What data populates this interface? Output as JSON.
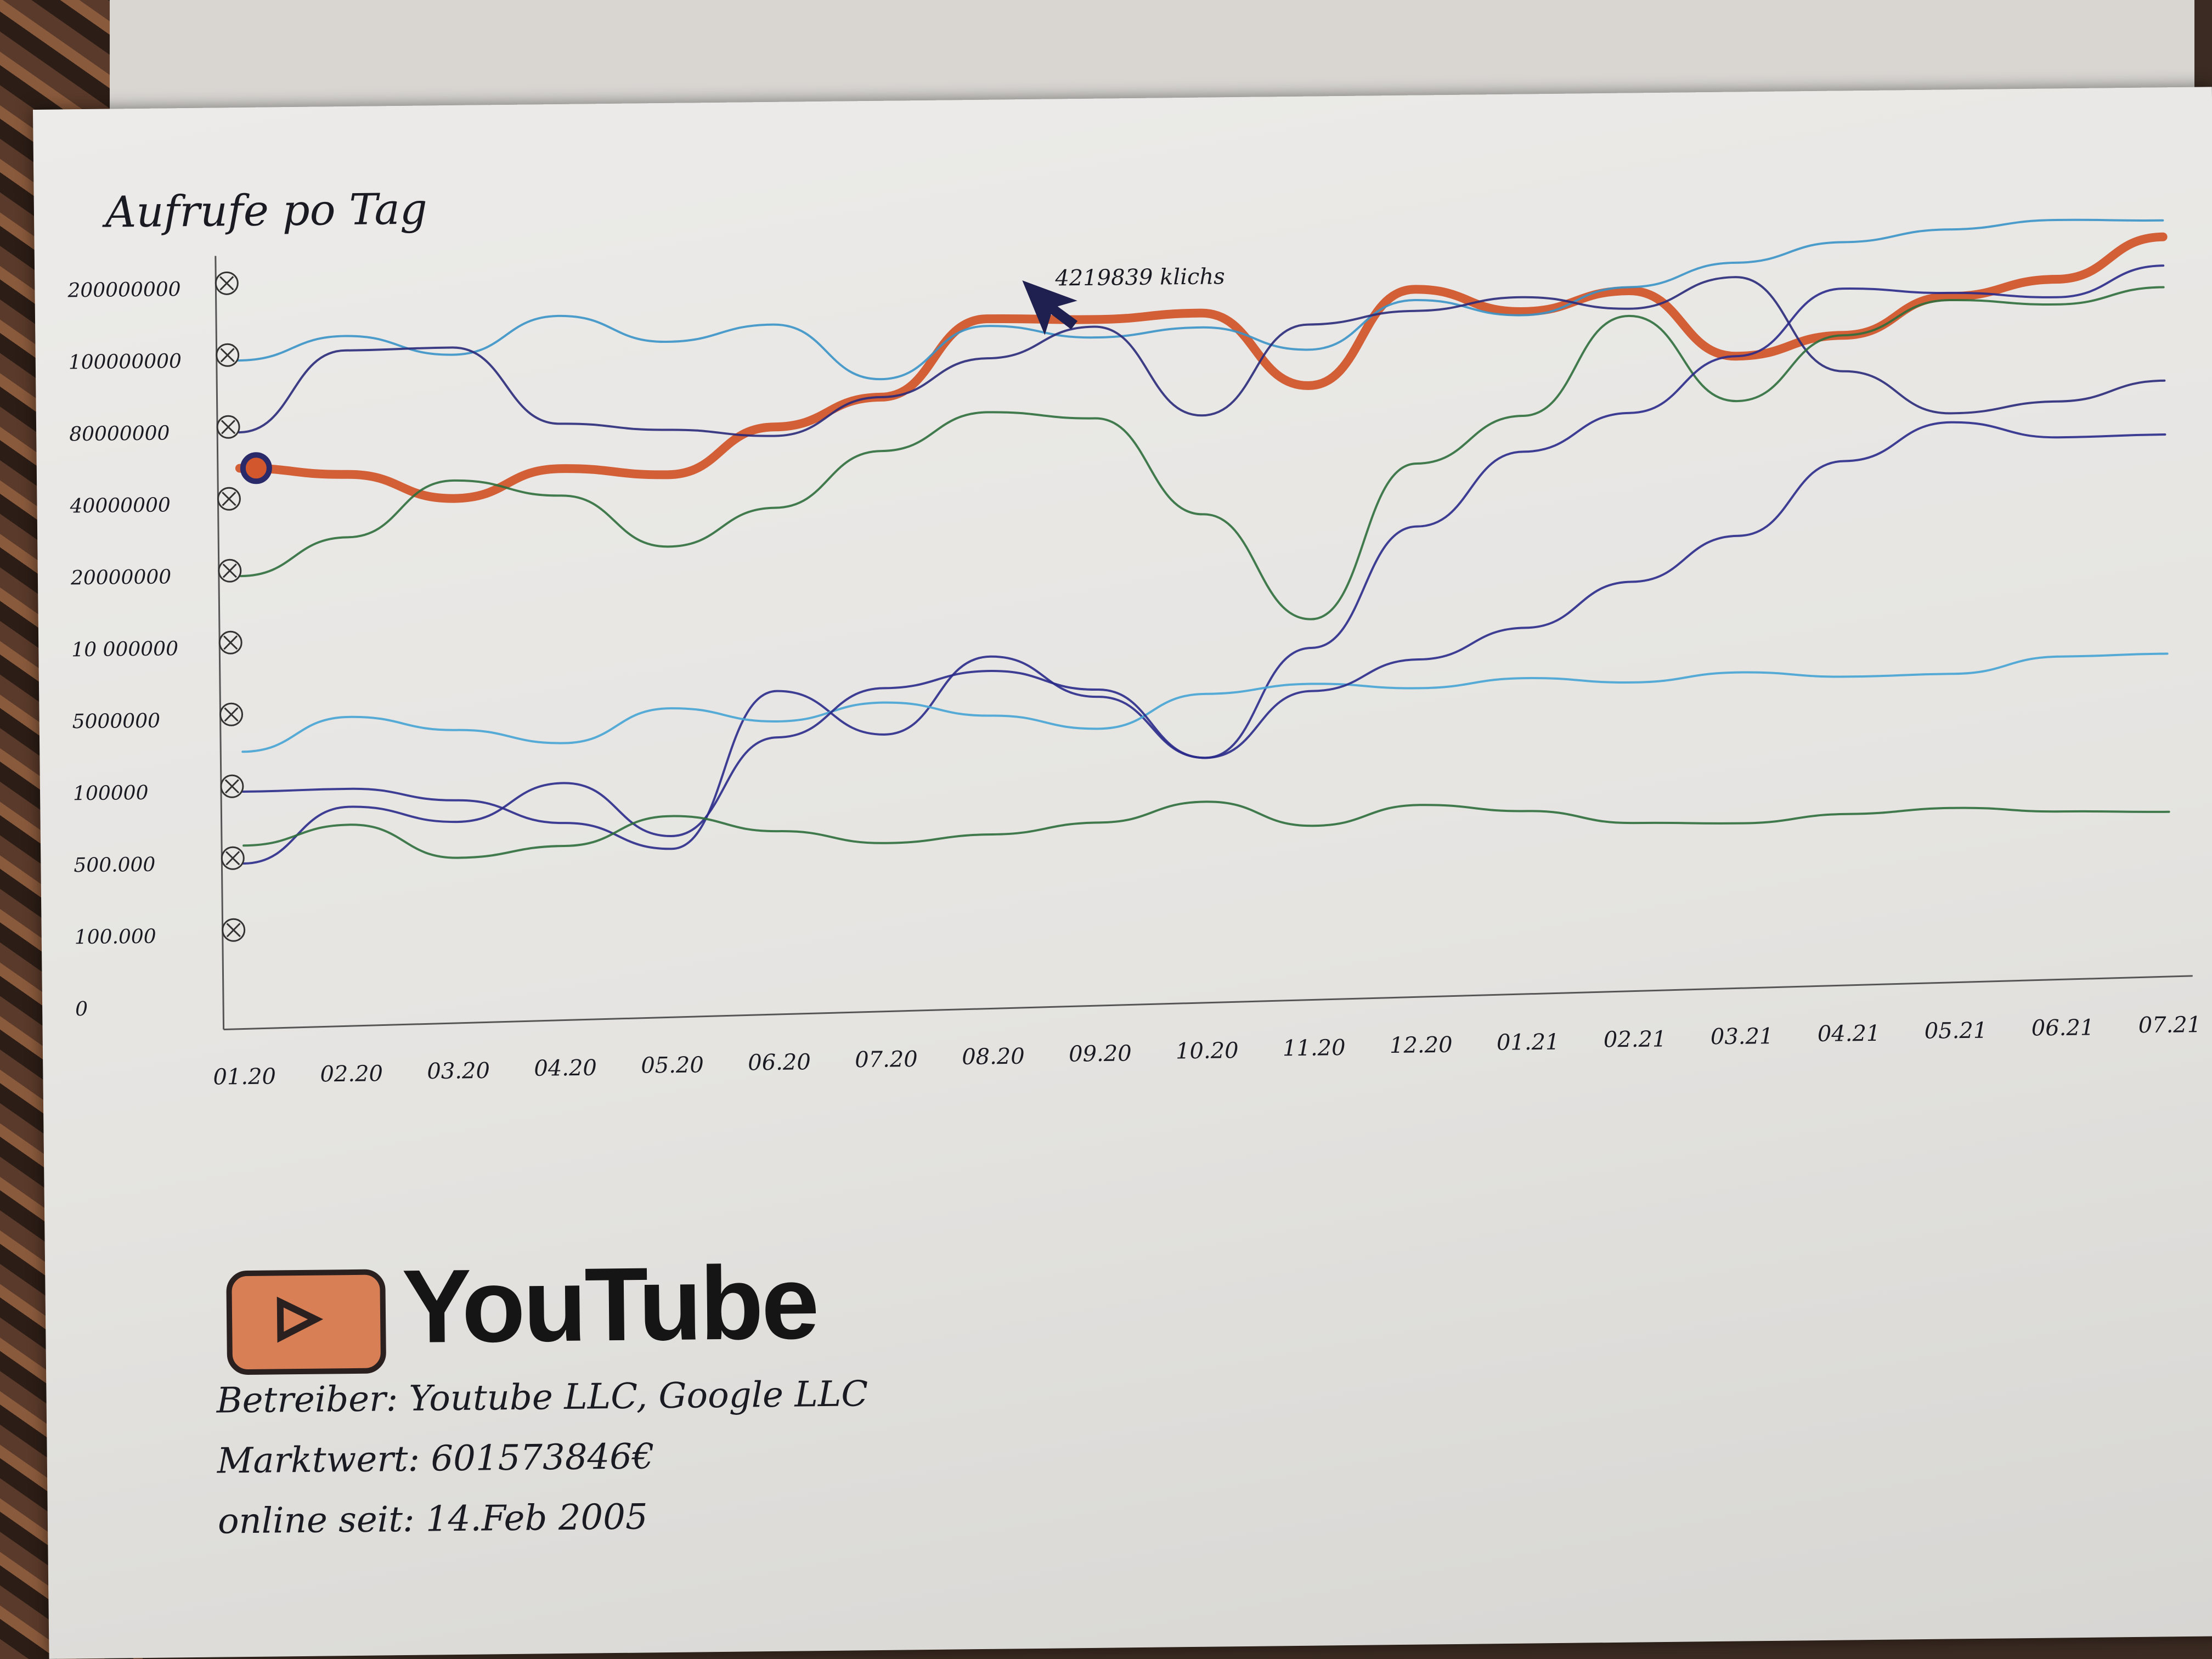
{
  "chart_data": {
    "type": "line",
    "title": "Aufrufe po Tag",
    "x_tick_labels": [
      "01.20",
      "02.20",
      "03.20",
      "04.20",
      "05.20",
      "06.20",
      "07.20",
      "08.20",
      "09.20",
      "10.20",
      "11.20",
      "12.20",
      "01.21",
      "02.21",
      "03.21",
      "04.21",
      "05.21",
      "06.21",
      "07.21"
    ],
    "y_tick_labels": [
      "200000000",
      "100000000",
      "80000000",
      "40000000",
      "20000000",
      "10 000000",
      "5000000",
      "100000",
      "500.000",
      "100.000",
      "0"
    ],
    "annotation": "4219839 klichs",
    "series": [
      {
        "color": "#d2572d",
        "emphasis": true,
        "values": [
          60000000,
          55000000,
          40000000,
          55000000,
          50000000,
          75000000,
          85000000,
          130000000,
          125000000,
          130000000,
          85000000,
          155000000,
          120000000,
          145000000,
          90000000,
          95000000,
          125000000,
          145000000,
          200000000
        ]
      },
      {
        "color": "#3a93c7",
        "values": [
          100000000,
          130000000,
          100000000,
          150000000,
          110000000,
          130000000,
          90000000,
          120000000,
          100000000,
          110000000,
          95000000,
          140000000,
          115000000,
          150000000,
          180000000,
          210000000,
          240000000,
          260000000,
          250000000
        ]
      },
      {
        "color": "#2a2a7a",
        "values": [
          80000000,
          110000000,
          110000000,
          80000000,
          75000000,
          70000000,
          85000000,
          95000000,
          115000000,
          75000000,
          110000000,
          125000000,
          140000000,
          120000000,
          160000000,
          85000000,
          65000000,
          70000000,
          80000000
        ]
      },
      {
        "color": "#2d6e3c",
        "values": [
          20000000,
          30000000,
          50000000,
          40000000,
          25000000,
          35000000,
          60000000,
          80000000,
          75000000,
          30000000,
          10000000,
          45000000,
          70000000,
          110000000,
          75000000,
          95000000,
          120000000,
          110000000,
          130000000
        ]
      },
      {
        "color": "#2a2a8a",
        "values": [
          100000,
          100000,
          180000,
          1500000,
          600000,
          6000000,
          4000000,
          8000000,
          5000000,
          3000000,
          8000000,
          25000000,
          50000000,
          70000000,
          90000000,
          140000000,
          130000000,
          120000000,
          160000000
        ]
      },
      {
        "color": "#45a3d4",
        "values": [
          4000000,
          5000000,
          4500000,
          4000000,
          5000000,
          4500000,
          5000000,
          4500000,
          4000000,
          5000000,
          5500000,
          5000000,
          5500000,
          5000000,
          5500000,
          5000000,
          5000000,
          6000000,
          6000000
        ]
      },
      {
        "color": "#2a2a8a",
        "values": [
          500000,
          200000,
          300000,
          100000,
          1000000,
          4000000,
          6000000,
          7000000,
          5500000,
          3000000,
          5000000,
          7000000,
          9000000,
          14000000,
          20000000,
          40000000,
          60000000,
          50000000,
          50000000
        ]
      },
      {
        "color": "#2d6e3c",
        "values": [
          400000,
          300000,
          500000,
          450000,
          300000,
          400000,
          600000,
          450000,
          400000,
          300000,
          450000,
          350000,
          400000,
          600000,
          500000,
          700000,
          800000,
          600000,
          500000
        ]
      }
    ]
  },
  "info": {
    "betreiber": "Betreiber: Youtube LLC, Google LLC",
    "marktwert": "Marktwert: 601573846€",
    "online_seit": "online seit: 14.Feb 2005"
  },
  "logo_text": "YouTube"
}
